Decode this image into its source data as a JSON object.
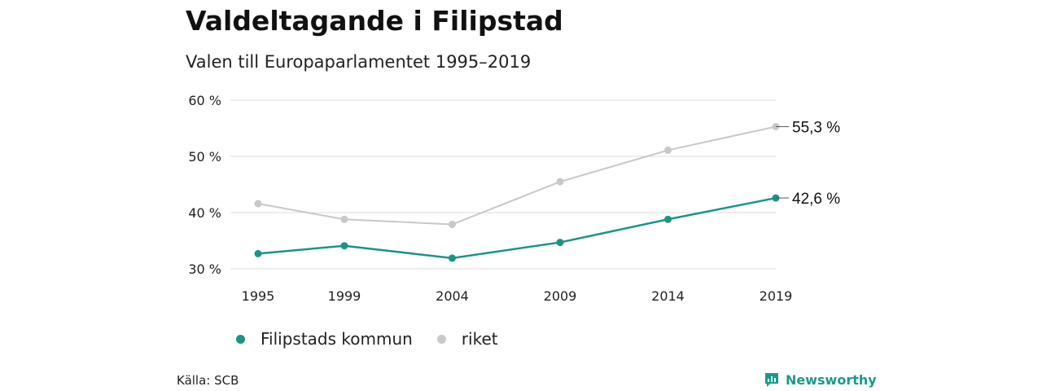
{
  "chart_data": {
    "type": "line",
    "title": "Valdeltagande i Filipstad",
    "subtitle": "Valen till Europaparlamentet 1995–2019",
    "x": [
      "1995",
      "1999",
      "2004",
      "2009",
      "2014",
      "2019"
    ],
    "ylim": [
      30,
      60
    ],
    "yticks": [
      30,
      40,
      50,
      60
    ],
    "ytick_labels": [
      "30 %",
      "40 %",
      "50 %",
      "60 %"
    ],
    "grid": true,
    "legend_placement": "bottom-left",
    "series": [
      {
        "name": "Filipstads kommun",
        "color": "#1a9485",
        "values": [
          32.7,
          34.1,
          31.9,
          34.7,
          38.8,
          42.6
        ],
        "end_label": "42,6 %"
      },
      {
        "name": "riket",
        "color": "#c8c8c8",
        "values": [
          41.6,
          38.8,
          37.9,
          45.5,
          51.1,
          55.3
        ],
        "end_label": "55,3 %"
      }
    ]
  },
  "footer": {
    "source": "Källa: SCB",
    "brand": "Newsworthy",
    "brand_icon": "newsworthy-logo-icon",
    "brand_color": "#1a9a8a"
  }
}
